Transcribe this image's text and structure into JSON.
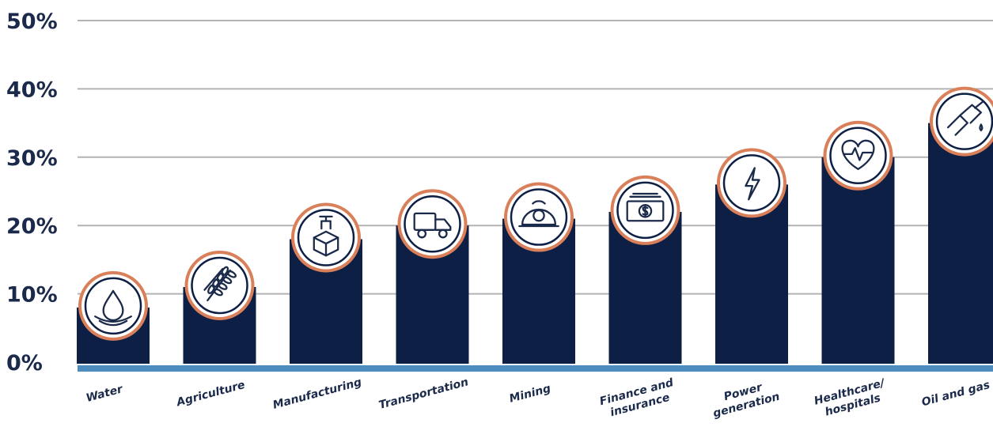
{
  "chart_data": {
    "type": "bar",
    "categories": [
      "Water",
      "Agriculture",
      "Manufacturing",
      "Transportation",
      "Mining",
      "Finance and insurance",
      "Power generation",
      "Healthcare/ hospitals",
      "Oil and gas"
    ],
    "category_lines": [
      [
        "Water"
      ],
      [
        "Agriculture"
      ],
      [
        "Manufacturing"
      ],
      [
        "Transportation"
      ],
      [
        "Mining"
      ],
      [
        "Finance and",
        "insurance"
      ],
      [
        "Power",
        "generation"
      ],
      [
        "Healthcare/",
        "hospitals"
      ],
      [
        "Oil and gas"
      ]
    ],
    "values": [
      8,
      11,
      18,
      20,
      21,
      22,
      26,
      30,
      35
    ],
    "icons": [
      "water-drop-icon",
      "wheat-icon",
      "package-robot-arm-icon",
      "truck-icon",
      "mining-helmet-icon",
      "banknote-icon",
      "lightning-bolt-icon",
      "heart-pulse-icon",
      "fuel-nozzle-icon"
    ],
    "ylim": [
      0,
      50
    ],
    "yticks": [
      0,
      10,
      20,
      30,
      40,
      50
    ],
    "ytick_labels": [
      "0%",
      "10%",
      "20%",
      "30%",
      "40%",
      "50%"
    ],
    "grid": true,
    "colors": {
      "bar": "#0e1f45",
      "grid": "#b3b3b3",
      "baseline": "#4d8cbf",
      "icon_ring": "#d9805a",
      "text": "#1b2a4a"
    }
  }
}
